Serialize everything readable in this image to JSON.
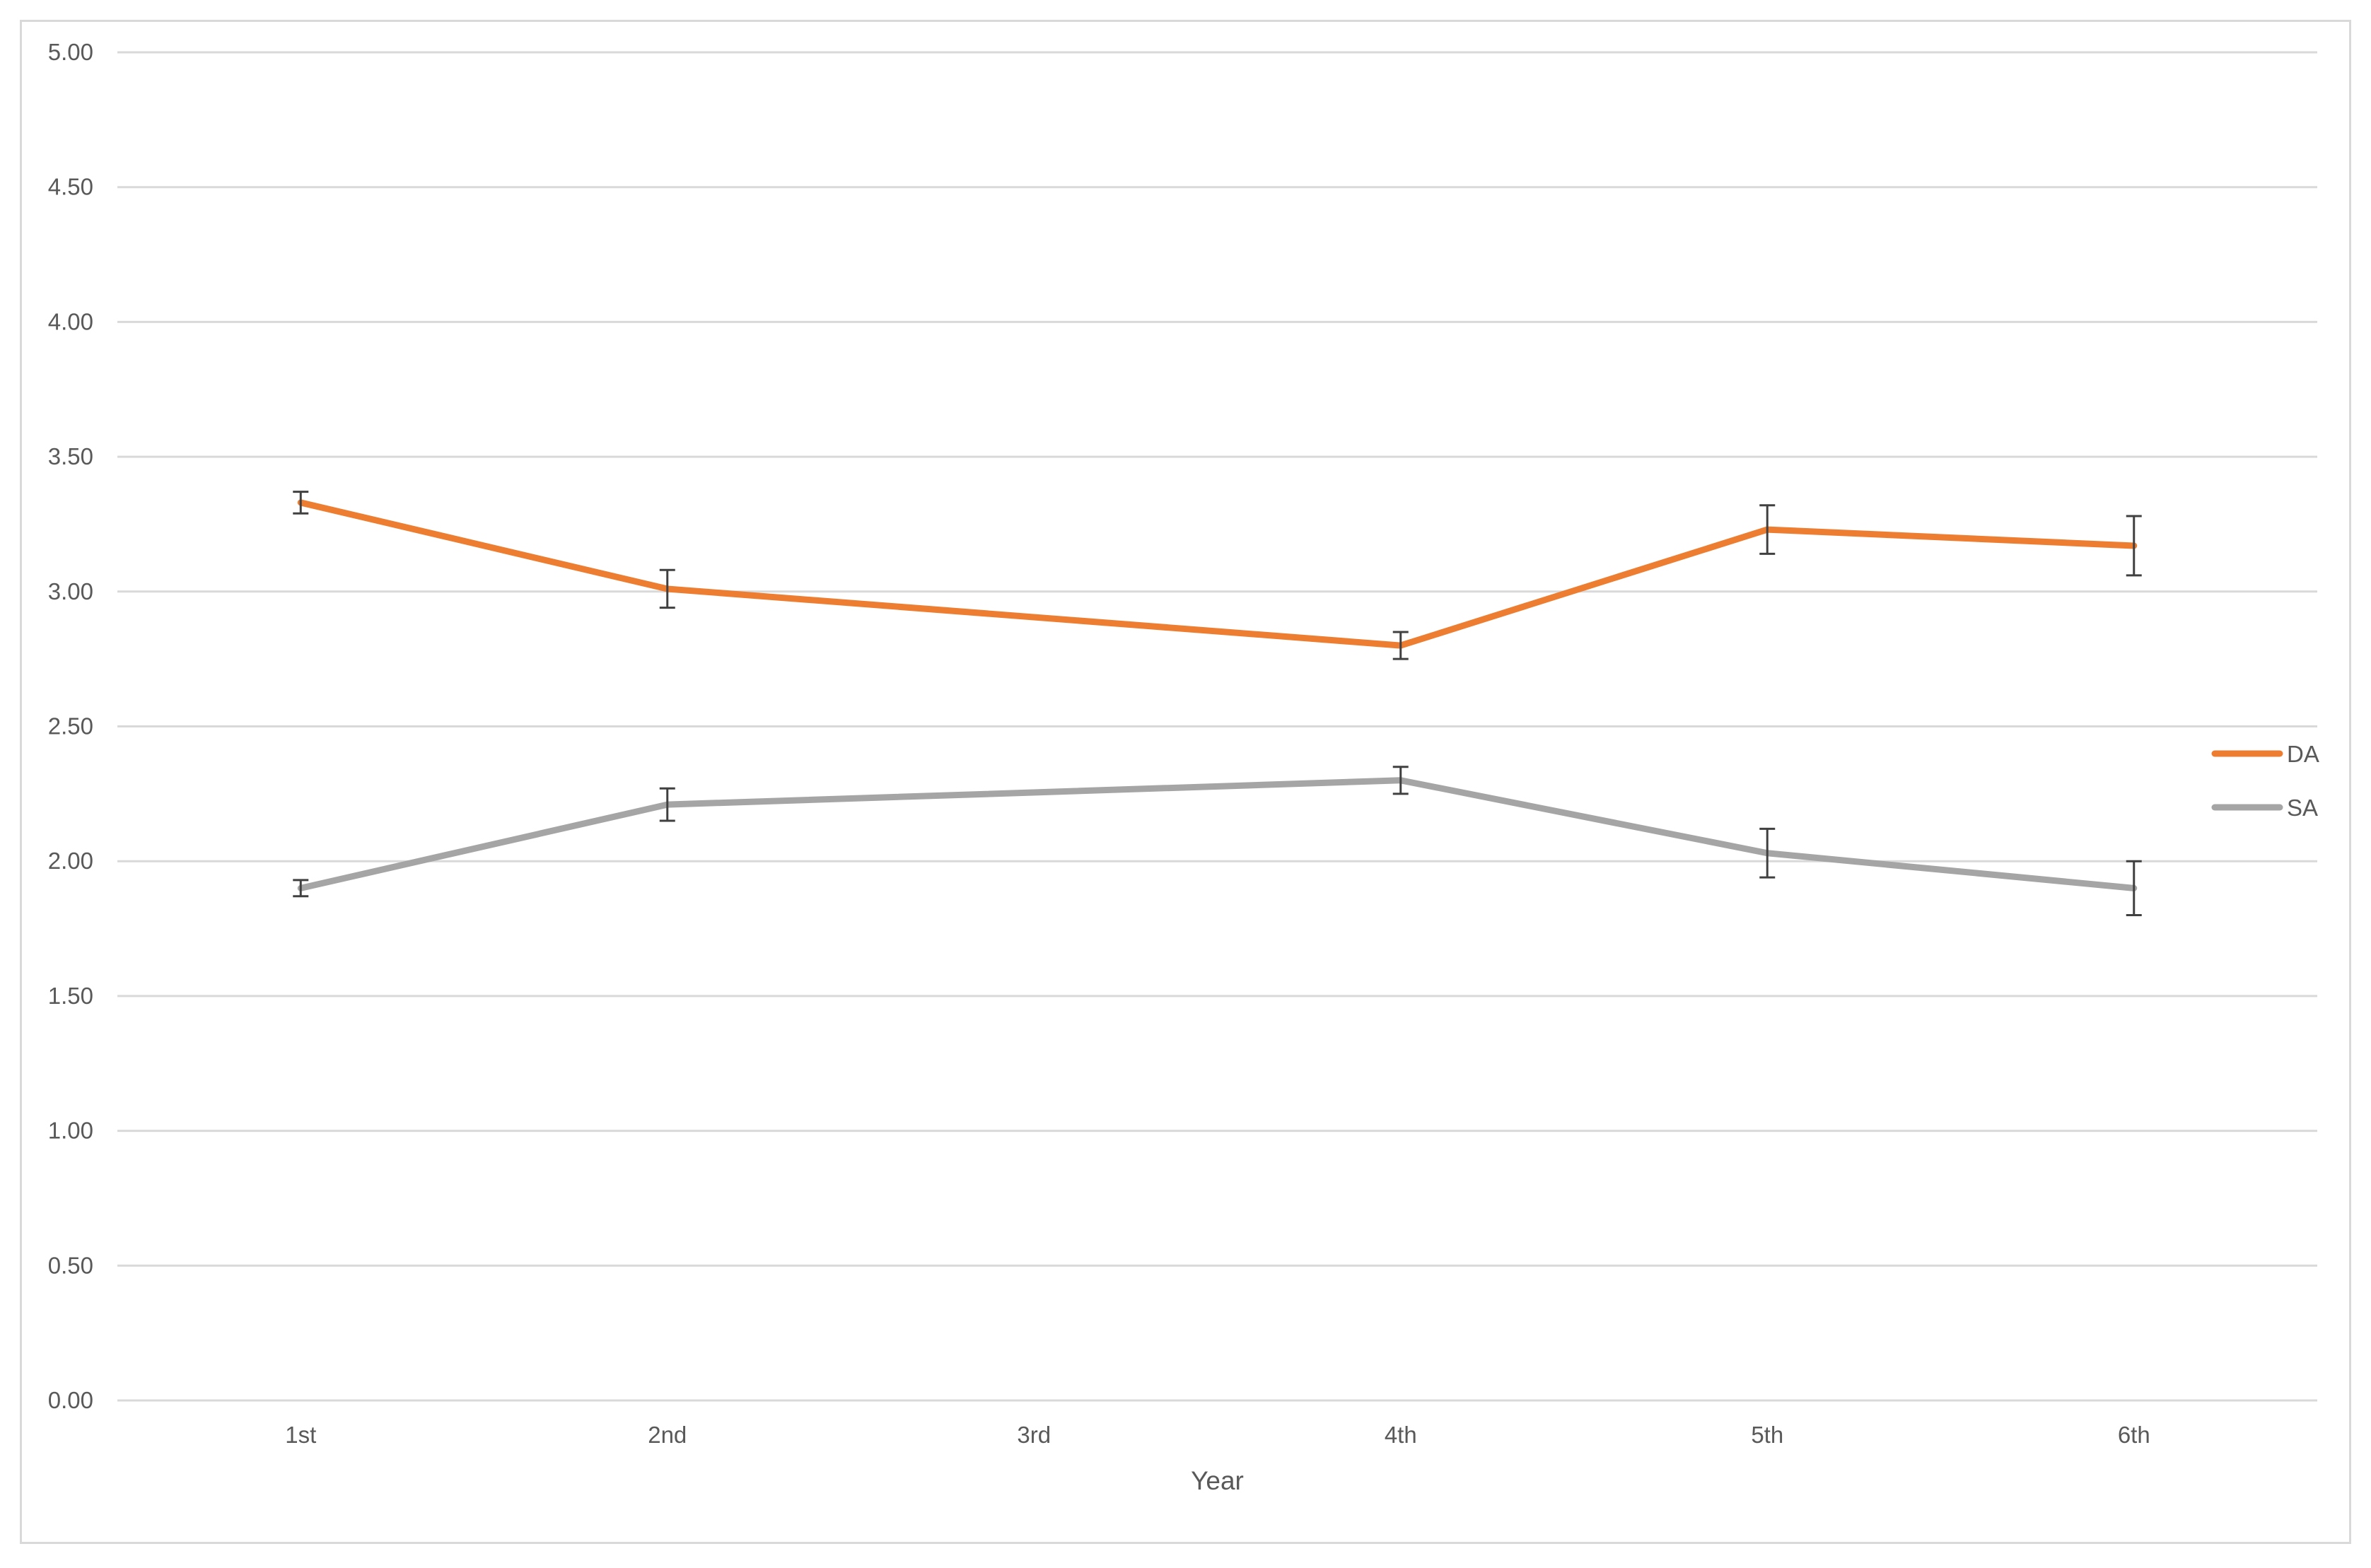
{
  "chart_data": {
    "type": "line",
    "title": "",
    "xlabel": "Year",
    "ylabel": "",
    "categories": [
      "1st",
      "2nd",
      "3rd",
      "4th",
      "5th",
      "6th"
    ],
    "ylim": [
      0,
      5
    ],
    "yticks": [
      0,
      0.5,
      1,
      1.5,
      2,
      2.5,
      3,
      3.5,
      4,
      4.5,
      5
    ],
    "ytick_labels": [
      "0.00",
      "0.50",
      "1.00",
      "1.50",
      "2.00",
      "2.50",
      "3.00",
      "3.50",
      "4.00",
      "4.50",
      "5.00"
    ],
    "grid": "horizontal",
    "legend_position": "right",
    "series": [
      {
        "name": "DA",
        "color": "#ED7D31",
        "x": [
          "1st",
          "2nd",
          "4th",
          "5th",
          "6th"
        ],
        "values": [
          3.33,
          3.01,
          2.8,
          3.23,
          3.17
        ],
        "error": [
          0.04,
          0.07,
          0.05,
          0.09,
          0.11
        ]
      },
      {
        "name": "SA",
        "color": "#A5A5A5",
        "x": [
          "1st",
          "2nd",
          "4th",
          "5th",
          "6th"
        ],
        "values": [
          1.9,
          2.21,
          2.3,
          2.03,
          1.9
        ],
        "error": [
          0.03,
          0.06,
          0.05,
          0.09,
          0.1
        ]
      }
    ]
  }
}
